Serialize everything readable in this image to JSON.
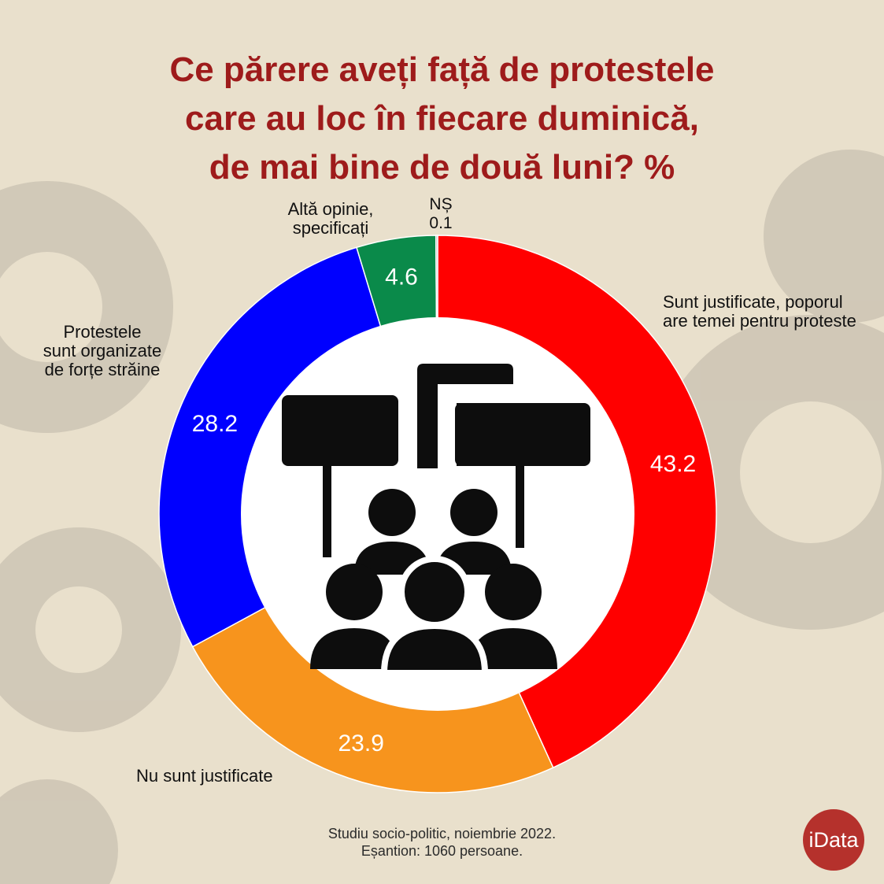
{
  "chart_data": {
    "type": "pie",
    "title_lines": [
      "Ce părere aveți față de protestele",
      "care au loc în fiecare duminică,",
      "de mai bine de două luni? %"
    ],
    "slices": [
      {
        "label_lines": [
          "Sunt justificate, poporul",
          "are temei pentru proteste"
        ],
        "value": 43.2,
        "value_label": "43.2",
        "color": "#ff0000"
      },
      {
        "label_lines": [
          "Nu sunt justificate"
        ],
        "value": 23.9,
        "value_label": "23.9",
        "color": "#f7941d"
      },
      {
        "label_lines": [
          "Protestele",
          "sunt organizate",
          "de forțe străine"
        ],
        "value": 28.2,
        "value_label": "28.2",
        "color": "#0000ff"
      },
      {
        "label_lines": [
          "Altă opinie,",
          "specificați"
        ],
        "value": 4.6,
        "value_label": "4.6",
        "color": "#0a8a4a"
      },
      {
        "label_lines": [
          "NȘ"
        ],
        "value": 0.1,
        "value_label": "0.1",
        "color": "#9a9a9a"
      }
    ],
    "donut": true,
    "value_unit": "%"
  },
  "footer": {
    "line1": "Studiu socio-politic, noiembrie 2022.",
    "line2": "Eșantion: 1060 persoane."
  },
  "logo": {
    "text": "iData"
  },
  "colors": {
    "background": "#e9e0cc",
    "title": "#9e1b1b",
    "center": "#ffffff",
    "icon": "#0d0d0d"
  },
  "icon": {
    "name": "protest-crowd-icon"
  }
}
